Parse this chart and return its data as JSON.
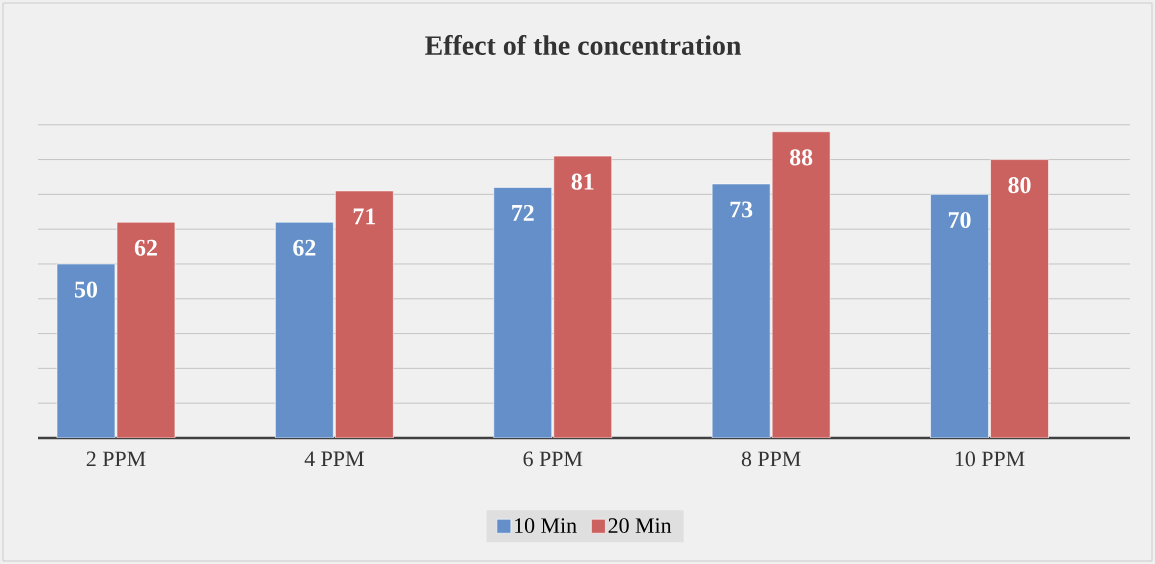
{
  "chart_data": {
    "type": "bar",
    "title": "Effect of the concentration",
    "categories": [
      "2 PPM",
      "4 PPM",
      "6 PPM",
      "8 PPM",
      "10 PPM"
    ],
    "series": [
      {
        "name": "10 Min",
        "color": "#648fc8",
        "values": [
          50,
          62,
          72,
          73,
          70
        ]
      },
      {
        "name": "20 Min",
        "color": "#cb625f",
        "values": [
          62,
          71,
          81,
          88,
          80
        ]
      }
    ],
    "tick_labels": "x",
    "grid": "y",
    "legend": "bottom",
    "data_labels": true
  }
}
